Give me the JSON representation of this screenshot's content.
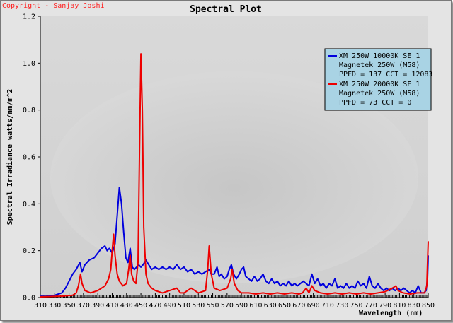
{
  "copyright": "Copyright - Sanjay Joshi",
  "chart_data": {
    "type": "line",
    "title": "Spectral Plot",
    "xlabel": "Wavelength (nm)",
    "ylabel": "Spectral Irradiance watts/nm/m^2",
    "xlim": [
      310,
      850
    ],
    "ylim": [
      0,
      1.2
    ],
    "x_ticks": [
      310,
      330,
      350,
      370,
      390,
      410,
      430,
      450,
      470,
      490,
      510,
      530,
      550,
      570,
      590,
      610,
      630,
      650,
      670,
      690,
      710,
      730,
      750,
      770,
      790,
      810,
      830,
      850
    ],
    "y_ticks": [
      0.0,
      0.2,
      0.4,
      0.6,
      0.8,
      1.0,
      1.2
    ],
    "y_tick_labels": [
      "0.0",
      "0.2",
      "0.4",
      "0.6",
      "0.8",
      "1.0",
      "1.2"
    ],
    "grid": false,
    "legend_position": "top-right",
    "series": [
      {
        "name": "XM 250W 10000K SE 1",
        "legend_lines": [
          "XM 250W 10000K SE 1",
          "Magnetek 250W (M58)",
          "PPFD = 137  CCT = 12083"
        ],
        "color": "#0000dd",
        "points": [
          [
            310,
            0.005
          ],
          [
            320,
            0.005
          ],
          [
            330,
            0.01
          ],
          [
            340,
            0.02
          ],
          [
            345,
            0.04
          ],
          [
            350,
            0.07
          ],
          [
            355,
            0.1
          ],
          [
            360,
            0.12
          ],
          [
            365,
            0.15
          ],
          [
            368,
            0.11
          ],
          [
            372,
            0.14
          ],
          [
            378,
            0.16
          ],
          [
            385,
            0.17
          ],
          [
            390,
            0.19
          ],
          [
            395,
            0.21
          ],
          [
            400,
            0.22
          ],
          [
            403,
            0.2
          ],
          [
            406,
            0.21
          ],
          [
            410,
            0.19
          ],
          [
            414,
            0.23
          ],
          [
            417,
            0.35
          ],
          [
            420,
            0.47
          ],
          [
            423,
            0.4
          ],
          [
            426,
            0.28
          ],
          [
            429,
            0.17
          ],
          [
            432,
            0.15
          ],
          [
            435,
            0.21
          ],
          [
            438,
            0.13
          ],
          [
            441,
            0.12
          ],
          [
            444,
            0.13
          ],
          [
            447,
            0.14
          ],
          [
            450,
            0.13
          ],
          [
            453,
            0.14
          ],
          [
            457,
            0.16
          ],
          [
            461,
            0.14
          ],
          [
            465,
            0.12
          ],
          [
            470,
            0.13
          ],
          [
            475,
            0.12
          ],
          [
            480,
            0.13
          ],
          [
            485,
            0.12
          ],
          [
            490,
            0.13
          ],
          [
            495,
            0.12
          ],
          [
            500,
            0.14
          ],
          [
            505,
            0.12
          ],
          [
            510,
            0.13
          ],
          [
            515,
            0.11
          ],
          [
            520,
            0.12
          ],
          [
            525,
            0.1
          ],
          [
            530,
            0.11
          ],
          [
            535,
            0.1
          ],
          [
            540,
            0.11
          ],
          [
            545,
            0.12
          ],
          [
            548,
            0.1
          ],
          [
            552,
            0.1
          ],
          [
            556,
            0.13
          ],
          [
            559,
            0.09
          ],
          [
            562,
            0.1
          ],
          [
            566,
            0.08
          ],
          [
            570,
            0.09
          ],
          [
            573,
            0.12
          ],
          [
            576,
            0.14
          ],
          [
            579,
            0.1
          ],
          [
            583,
            0.08
          ],
          [
            587,
            0.1
          ],
          [
            590,
            0.12
          ],
          [
            593,
            0.13
          ],
          [
            596,
            0.09
          ],
          [
            600,
            0.08
          ],
          [
            604,
            0.07
          ],
          [
            608,
            0.09
          ],
          [
            612,
            0.07
          ],
          [
            616,
            0.08
          ],
          [
            620,
            0.1
          ],
          [
            624,
            0.07
          ],
          [
            628,
            0.06
          ],
          [
            632,
            0.08
          ],
          [
            636,
            0.06
          ],
          [
            640,
            0.07
          ],
          [
            644,
            0.05
          ],
          [
            648,
            0.06
          ],
          [
            652,
            0.05
          ],
          [
            656,
            0.07
          ],
          [
            660,
            0.05
          ],
          [
            664,
            0.06
          ],
          [
            668,
            0.05
          ],
          [
            672,
            0.06
          ],
          [
            676,
            0.07
          ],
          [
            680,
            0.06
          ],
          [
            684,
            0.05
          ],
          [
            688,
            0.1
          ],
          [
            692,
            0.06
          ],
          [
            696,
            0.08
          ],
          [
            700,
            0.05
          ],
          [
            704,
            0.06
          ],
          [
            708,
            0.04
          ],
          [
            712,
            0.06
          ],
          [
            716,
            0.05
          ],
          [
            720,
            0.08
          ],
          [
            724,
            0.04
          ],
          [
            728,
            0.05
          ],
          [
            732,
            0.04
          ],
          [
            736,
            0.06
          ],
          [
            740,
            0.04
          ],
          [
            744,
            0.05
          ],
          [
            748,
            0.04
          ],
          [
            752,
            0.07
          ],
          [
            756,
            0.05
          ],
          [
            760,
            0.06
          ],
          [
            764,
            0.04
          ],
          [
            768,
            0.09
          ],
          [
            772,
            0.05
          ],
          [
            776,
            0.04
          ],
          [
            780,
            0.06
          ],
          [
            784,
            0.04
          ],
          [
            788,
            0.03
          ],
          [
            792,
            0.04
          ],
          [
            796,
            0.03
          ],
          [
            800,
            0.04
          ],
          [
            804,
            0.03
          ],
          [
            808,
            0.04
          ],
          [
            812,
            0.03
          ],
          [
            816,
            0.04
          ],
          [
            820,
            0.03
          ],
          [
            824,
            0.02
          ],
          [
            828,
            0.03
          ],
          [
            832,
            0.02
          ],
          [
            836,
            0.05
          ],
          [
            840,
            0.02
          ],
          [
            844,
            0.02
          ],
          [
            847,
            0.03
          ],
          [
            849,
            0.08
          ],
          [
            850,
            0.18
          ]
        ]
      },
      {
        "name": "XM 250W 20000K SE 1",
        "legend_lines": [
          "XM 250W 20000K SE 1",
          "Magnetek 250W (M58)",
          "PPFD = 73  CCT = 0"
        ],
        "color": "#ee0000",
        "points": [
          [
            310,
            0.003
          ],
          [
            340,
            0.006
          ],
          [
            355,
            0.01
          ],
          [
            360,
            0.02
          ],
          [
            363,
            0.05
          ],
          [
            366,
            0.1
          ],
          [
            368,
            0.06
          ],
          [
            372,
            0.03
          ],
          [
            380,
            0.02
          ],
          [
            390,
            0.03
          ],
          [
            400,
            0.05
          ],
          [
            405,
            0.08
          ],
          [
            408,
            0.12
          ],
          [
            410,
            0.2
          ],
          [
            412,
            0.27
          ],
          [
            414,
            0.18
          ],
          [
            417,
            0.1
          ],
          [
            420,
            0.07
          ],
          [
            425,
            0.05
          ],
          [
            430,
            0.06
          ],
          [
            433,
            0.12
          ],
          [
            435,
            0.18
          ],
          [
            437,
            0.1
          ],
          [
            440,
            0.07
          ],
          [
            443,
            0.06
          ],
          [
            446,
            0.15
          ],
          [
            448,
            0.6
          ],
          [
            450,
            1.04
          ],
          [
            452,
            0.8
          ],
          [
            454,
            0.3
          ],
          [
            457,
            0.1
          ],
          [
            460,
            0.06
          ],
          [
            465,
            0.04
          ],
          [
            470,
            0.03
          ],
          [
            480,
            0.02
          ],
          [
            490,
            0.03
          ],
          [
            500,
            0.04
          ],
          [
            505,
            0.02
          ],
          [
            510,
            0.02
          ],
          [
            520,
            0.04
          ],
          [
            530,
            0.02
          ],
          [
            540,
            0.03
          ],
          [
            543,
            0.12
          ],
          [
            545,
            0.22
          ],
          [
            548,
            0.1
          ],
          [
            552,
            0.04
          ],
          [
            560,
            0.03
          ],
          [
            570,
            0.04
          ],
          [
            575,
            0.08
          ],
          [
            577,
            0.12
          ],
          [
            580,
            0.06
          ],
          [
            585,
            0.03
          ],
          [
            590,
            0.02
          ],
          [
            600,
            0.02
          ],
          [
            610,
            0.015
          ],
          [
            620,
            0.02
          ],
          [
            630,
            0.015
          ],
          [
            640,
            0.02
          ],
          [
            650,
            0.015
          ],
          [
            660,
            0.02
          ],
          [
            670,
            0.015
          ],
          [
            675,
            0.02
          ],
          [
            680,
            0.04
          ],
          [
            684,
            0.02
          ],
          [
            688,
            0.05
          ],
          [
            692,
            0.03
          ],
          [
            700,
            0.02
          ],
          [
            710,
            0.015
          ],
          [
            720,
            0.02
          ],
          [
            730,
            0.015
          ],
          [
            740,
            0.02
          ],
          [
            750,
            0.015
          ],
          [
            760,
            0.02
          ],
          [
            770,
            0.015
          ],
          [
            780,
            0.02
          ],
          [
            790,
            0.025
          ],
          [
            800,
            0.04
          ],
          [
            805,
            0.05
          ],
          [
            808,
            0.03
          ],
          [
            815,
            0.02
          ],
          [
            825,
            0.015
          ],
          [
            835,
            0.02
          ],
          [
            845,
            0.02
          ],
          [
            848,
            0.05
          ],
          [
            849,
            0.15
          ],
          [
            850,
            0.24
          ]
        ]
      }
    ]
  }
}
